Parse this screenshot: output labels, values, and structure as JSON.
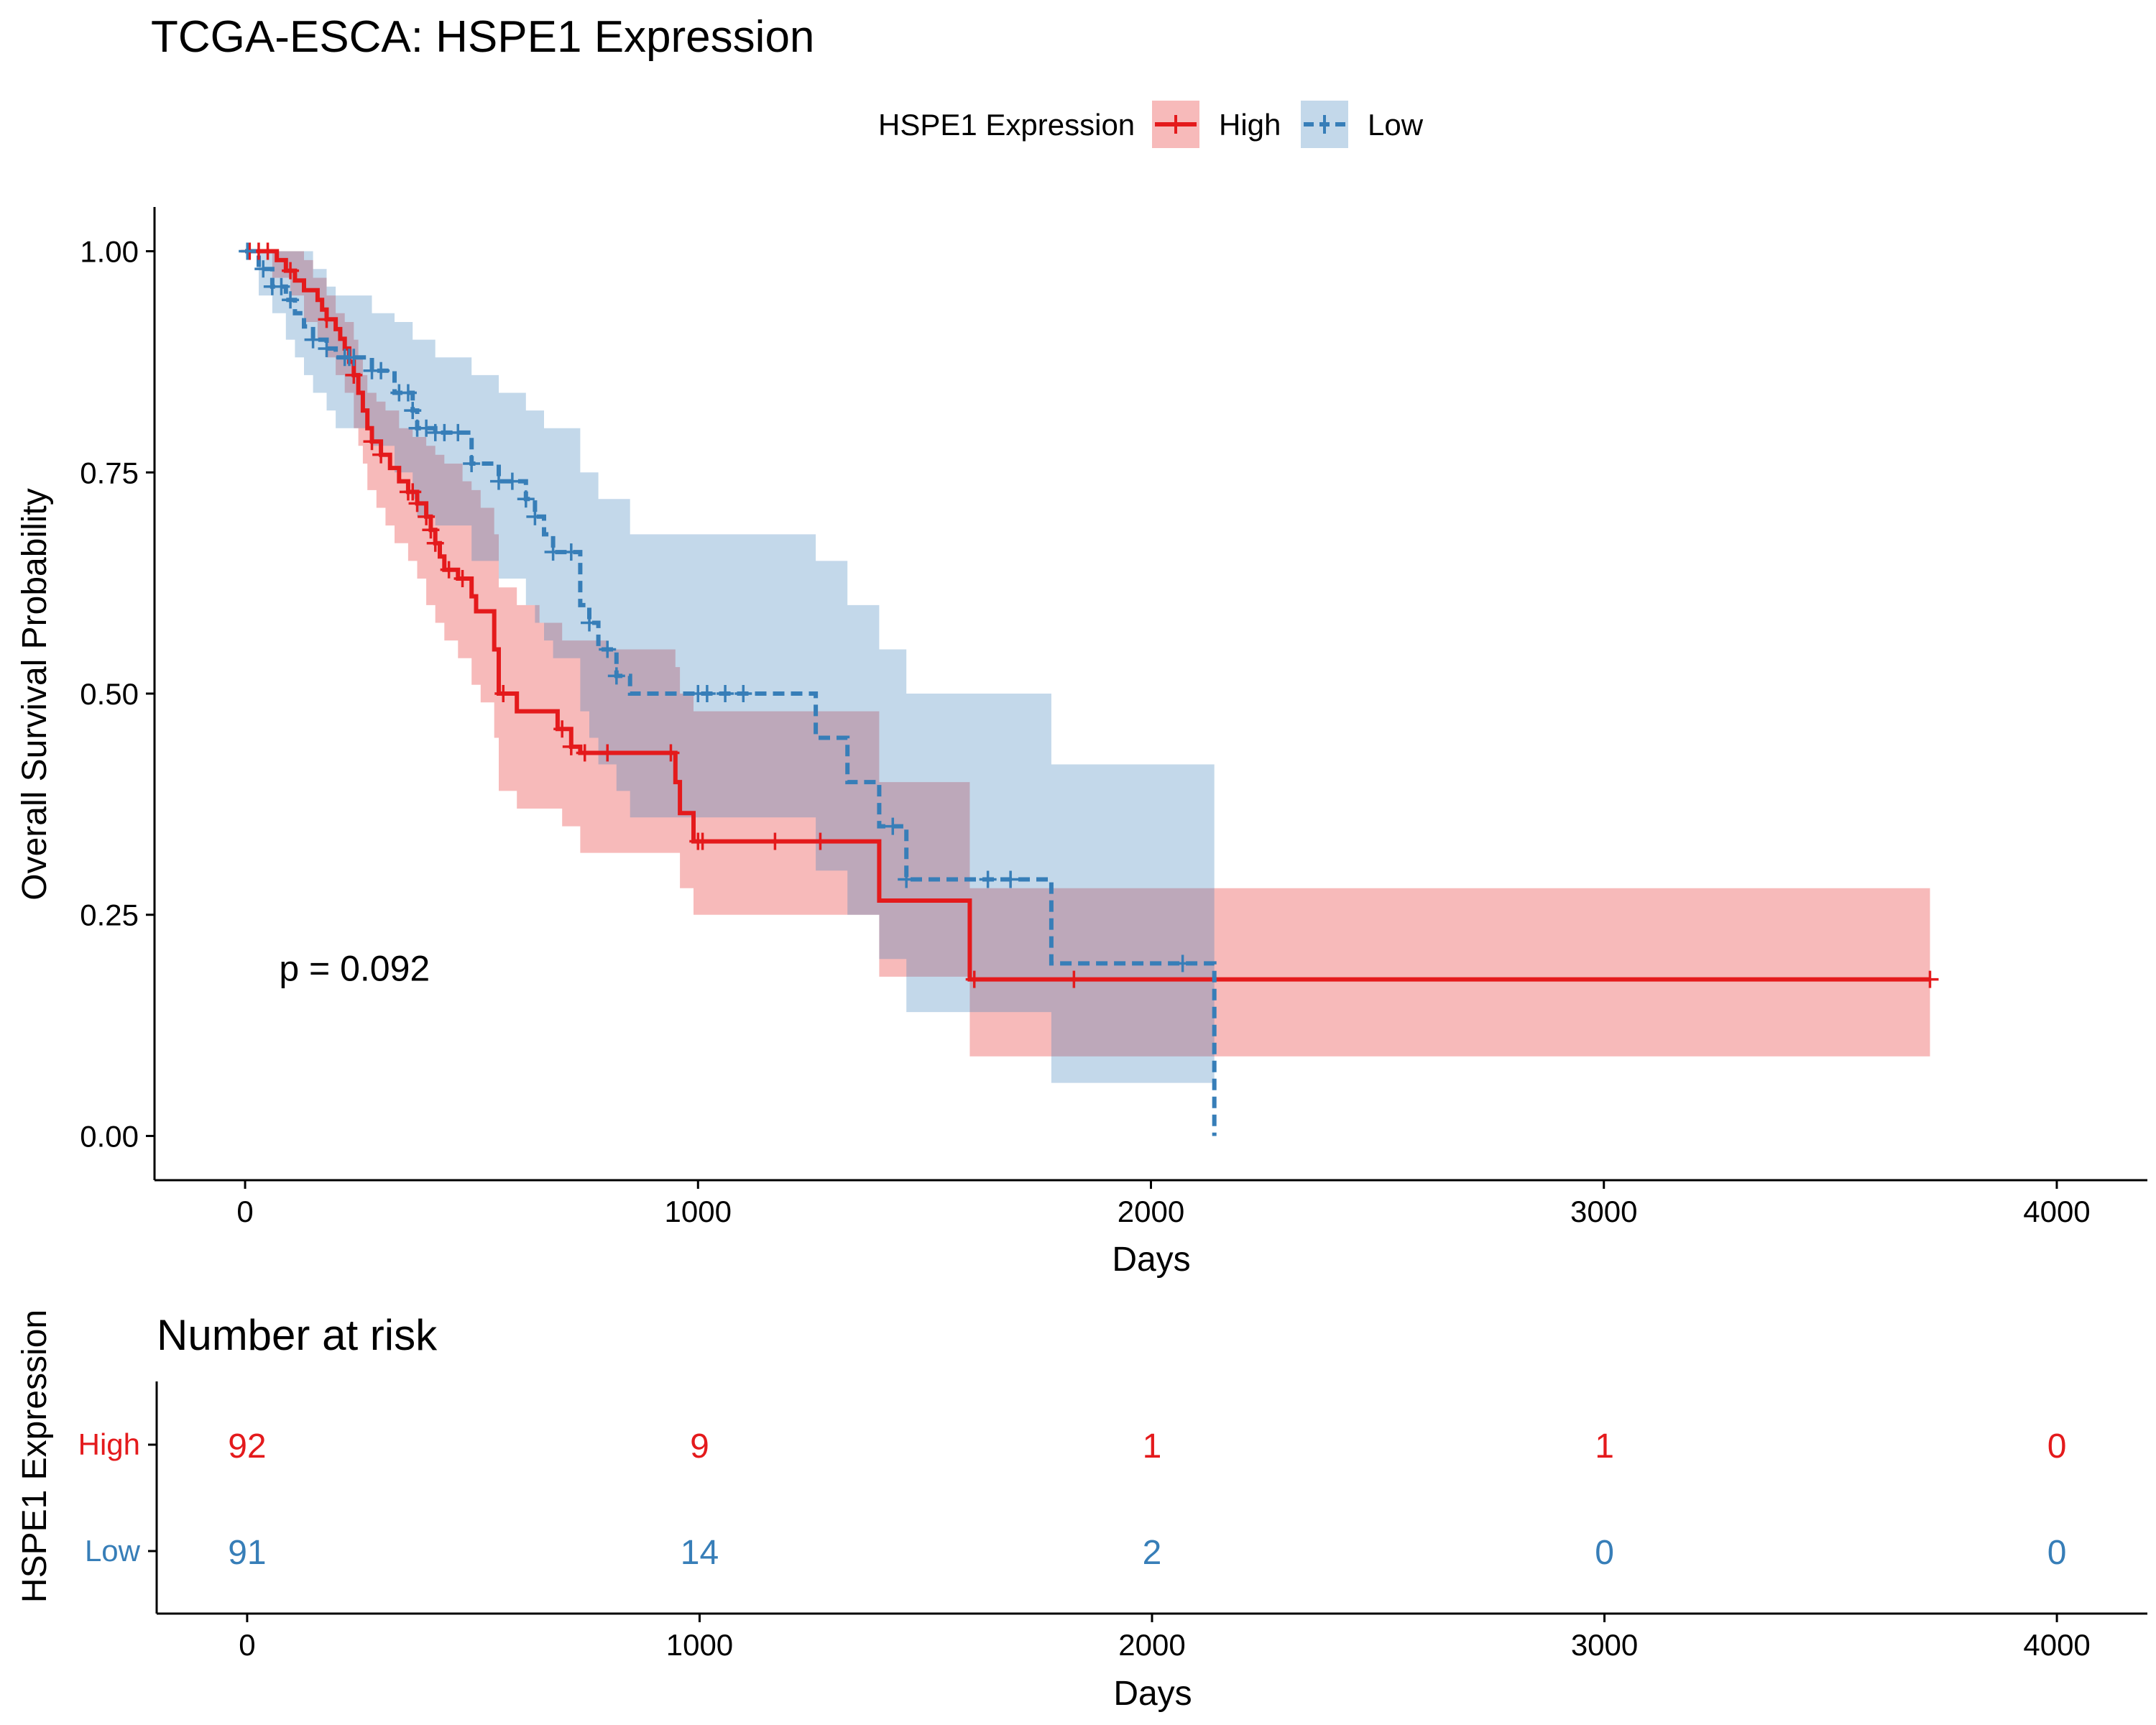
{
  "title": "TCGA-ESCA: HSPE1 Expression",
  "legend": {
    "title": "HSPE1 Expression",
    "items": [
      {
        "label": "High",
        "color": "#e41a1c",
        "linestyle": "solid"
      },
      {
        "label": "Low",
        "color": "#377eb8",
        "linestyle": "dashed"
      }
    ],
    "placement": "top"
  },
  "pvalue_text": "p = 0.092",
  "risk_table": {
    "title": "Number at risk",
    "ylabel": "HSPE1 Expression",
    "xlabel": "Days",
    "times": [
      0,
      1000,
      2000,
      3000,
      4000
    ],
    "tick_labels": [
      "0",
      "1000",
      "2000",
      "3000",
      "4000"
    ],
    "rows": [
      {
        "label": "High",
        "color": "#e41a1c",
        "counts": [
          "92",
          "9",
          "1",
          "1",
          "0"
        ]
      },
      {
        "label": "Low",
        "color": "#377eb8",
        "counts": [
          "91",
          "14",
          "2",
          "0",
          "0"
        ]
      }
    ]
  },
  "chart_data": {
    "type": "line",
    "subtype": "kaplan-meier",
    "title": "TCGA-ESCA: HSPE1 Expression",
    "xlabel": "Days",
    "ylabel": "Overall Survival Probability",
    "xlim": [
      -200,
      4200
    ],
    "ylim": [
      -0.05,
      1.05
    ],
    "x_ticks": [
      0,
      1000,
      2000,
      3000,
      4000
    ],
    "x_tick_labels": [
      "0",
      "1000",
      "2000",
      "3000",
      "4000"
    ],
    "y_ticks": [
      0,
      0.25,
      0.5,
      0.75,
      1
    ],
    "y_tick_labels": [
      "0.00",
      "0.25",
      "0.50",
      "0.75",
      "1.00"
    ],
    "grid": false,
    "annotations": [
      {
        "text": "p = 0.092",
        "x": 75,
        "y": 0.19
      }
    ],
    "series": [
      {
        "name": "High",
        "color": "#e41a1c",
        "linestyle": "solid",
        "steps": [
          [
            0,
            1
          ],
          [
            70,
            0.99
          ],
          [
            90,
            0.978
          ],
          [
            110,
            0.967
          ],
          [
            130,
            0.956
          ],
          [
            160,
            0.945
          ],
          [
            170,
            0.934
          ],
          [
            180,
            0.923
          ],
          [
            200,
            0.912
          ],
          [
            210,
            0.901
          ],
          [
            220,
            0.89
          ],
          [
            230,
            0.875
          ],
          [
            240,
            0.86
          ],
          [
            250,
            0.84
          ],
          [
            260,
            0.82
          ],
          [
            270,
            0.8
          ],
          [
            280,
            0.785
          ],
          [
            300,
            0.77
          ],
          [
            320,
            0.755
          ],
          [
            340,
            0.74
          ],
          [
            360,
            0.728
          ],
          [
            380,
            0.715
          ],
          [
            400,
            0.7
          ],
          [
            410,
            0.685
          ],
          [
            420,
            0.67
          ],
          [
            430,
            0.655
          ],
          [
            440,
            0.64
          ],
          [
            470,
            0.63
          ],
          [
            500,
            0.61
          ],
          [
            510,
            0.593
          ],
          [
            550,
            0.55
          ],
          [
            560,
            0.5
          ],
          [
            600,
            0.48
          ],
          [
            690,
            0.46
          ],
          [
            720,
            0.44
          ],
          [
            740,
            0.433
          ],
          [
            950,
            0.4
          ],
          [
            960,
            0.365
          ],
          [
            990,
            0.333
          ],
          [
            1400,
            0.266
          ],
          [
            1600,
            0.177
          ],
          [
            3720,
            0.177
          ]
        ],
        "upper": [
          [
            0,
            1
          ],
          [
            100,
            1
          ],
          [
            130,
            0.99
          ],
          [
            150,
            0.97
          ],
          [
            180,
            0.95
          ],
          [
            200,
            0.93
          ],
          [
            220,
            0.92
          ],
          [
            240,
            0.9
          ],
          [
            250,
            0.88
          ],
          [
            260,
            0.86
          ],
          [
            270,
            0.84
          ],
          [
            290,
            0.83
          ],
          [
            310,
            0.82
          ],
          [
            340,
            0.8
          ],
          [
            370,
            0.79
          ],
          [
            400,
            0.78
          ],
          [
            420,
            0.77
          ],
          [
            440,
            0.76
          ],
          [
            480,
            0.74
          ],
          [
            500,
            0.73
          ],
          [
            520,
            0.71
          ],
          [
            550,
            0.68
          ],
          [
            560,
            0.62
          ],
          [
            600,
            0.6
          ],
          [
            650,
            0.58
          ],
          [
            700,
            0.56
          ],
          [
            800,
            0.55
          ],
          [
            950,
            0.53
          ],
          [
            960,
            0.5
          ],
          [
            990,
            0.48
          ],
          [
            1400,
            0.4
          ],
          [
            1600,
            0.28
          ],
          [
            3720,
            0.28
          ]
        ],
        "lower": [
          [
            0,
            1
          ],
          [
            60,
            0.97
          ],
          [
            100,
            0.95
          ],
          [
            130,
            0.92
          ],
          [
            160,
            0.9
          ],
          [
            180,
            0.88
          ],
          [
            200,
            0.86
          ],
          [
            220,
            0.84
          ],
          [
            240,
            0.8
          ],
          [
            250,
            0.78
          ],
          [
            260,
            0.76
          ],
          [
            270,
            0.73
          ],
          [
            290,
            0.71
          ],
          [
            310,
            0.69
          ],
          [
            330,
            0.67
          ],
          [
            360,
            0.65
          ],
          [
            380,
            0.63
          ],
          [
            400,
            0.6
          ],
          [
            420,
            0.58
          ],
          [
            440,
            0.56
          ],
          [
            470,
            0.54
          ],
          [
            500,
            0.51
          ],
          [
            520,
            0.49
          ],
          [
            550,
            0.45
          ],
          [
            560,
            0.39
          ],
          [
            600,
            0.37
          ],
          [
            700,
            0.35
          ],
          [
            740,
            0.32
          ],
          [
            960,
            0.28
          ],
          [
            990,
            0.25
          ],
          [
            1400,
            0.18
          ],
          [
            1600,
            0.09
          ],
          [
            3720,
            0.09
          ]
        ],
        "censor_x": [
          10,
          30,
          50,
          100,
          180,
          240,
          280,
          300,
          360,
          370,
          380,
          400,
          410,
          420,
          450,
          480,
          570,
          700,
          720,
          750,
          800,
          940,
          1000,
          1010,
          1170,
          1270,
          1610,
          1830,
          3720
        ]
      },
      {
        "name": "Low",
        "color": "#377eb8",
        "linestyle": "dashed",
        "steps": [
          [
            0,
            1
          ],
          [
            30,
            0.98
          ],
          [
            60,
            0.96
          ],
          [
            90,
            0.945
          ],
          [
            110,
            0.93
          ],
          [
            130,
            0.915
          ],
          [
            150,
            0.9
          ],
          [
            180,
            0.89
          ],
          [
            200,
            0.88
          ],
          [
            280,
            0.865
          ],
          [
            330,
            0.84
          ],
          [
            370,
            0.82
          ],
          [
            380,
            0.8
          ],
          [
            420,
            0.795
          ],
          [
            500,
            0.76
          ],
          [
            560,
            0.74
          ],
          [
            620,
            0.72
          ],
          [
            640,
            0.7
          ],
          [
            660,
            0.68
          ],
          [
            680,
            0.66
          ],
          [
            740,
            0.6
          ],
          [
            760,
            0.58
          ],
          [
            780,
            0.55
          ],
          [
            820,
            0.52
          ],
          [
            850,
            0.5
          ],
          [
            1260,
            0.45
          ],
          [
            1330,
            0.4
          ],
          [
            1400,
            0.35
          ],
          [
            1460,
            0.29
          ],
          [
            1780,
            0.195
          ],
          [
            2140,
            0.0
          ]
        ],
        "upper": [
          [
            0,
            1
          ],
          [
            100,
            1
          ],
          [
            150,
            0.98
          ],
          [
            180,
            0.96
          ],
          [
            200,
            0.95
          ],
          [
            280,
            0.93
          ],
          [
            330,
            0.92
          ],
          [
            370,
            0.9
          ],
          [
            420,
            0.88
          ],
          [
            500,
            0.86
          ],
          [
            560,
            0.84
          ],
          [
            620,
            0.82
          ],
          [
            660,
            0.8
          ],
          [
            740,
            0.75
          ],
          [
            780,
            0.72
          ],
          [
            850,
            0.68
          ],
          [
            1260,
            0.65
          ],
          [
            1330,
            0.6
          ],
          [
            1400,
            0.55
          ],
          [
            1460,
            0.5
          ],
          [
            1780,
            0.42
          ],
          [
            2140,
            0.42
          ]
        ],
        "lower": [
          [
            0,
            1
          ],
          [
            30,
            0.95
          ],
          [
            60,
            0.93
          ],
          [
            90,
            0.9
          ],
          [
            110,
            0.88
          ],
          [
            130,
            0.86
          ],
          [
            150,
            0.84
          ],
          [
            180,
            0.82
          ],
          [
            200,
            0.8
          ],
          [
            280,
            0.78
          ],
          [
            330,
            0.75
          ],
          [
            370,
            0.72
          ],
          [
            380,
            0.7
          ],
          [
            420,
            0.69
          ],
          [
            500,
            0.65
          ],
          [
            560,
            0.63
          ],
          [
            620,
            0.6
          ],
          [
            640,
            0.58
          ],
          [
            660,
            0.56
          ],
          [
            680,
            0.54
          ],
          [
            740,
            0.48
          ],
          [
            760,
            0.45
          ],
          [
            780,
            0.42
          ],
          [
            820,
            0.39
          ],
          [
            850,
            0.36
          ],
          [
            1260,
            0.3
          ],
          [
            1330,
            0.25
          ],
          [
            1400,
            0.2
          ],
          [
            1460,
            0.14
          ],
          [
            1780,
            0.06
          ],
          [
            2140,
            0.06
          ]
        ],
        "censor_x": [
          5,
          40,
          60,
          80,
          100,
          150,
          180,
          220,
          230,
          240,
          280,
          300,
          340,
          360,
          370,
          380,
          400,
          420,
          440,
          470,
          500,
          560,
          590,
          620,
          640,
          680,
          720,
          760,
          800,
          820,
          1000,
          1020,
          1060,
          1100,
          1430,
          1460,
          1640,
          1690,
          2070
        ]
      }
    ]
  }
}
